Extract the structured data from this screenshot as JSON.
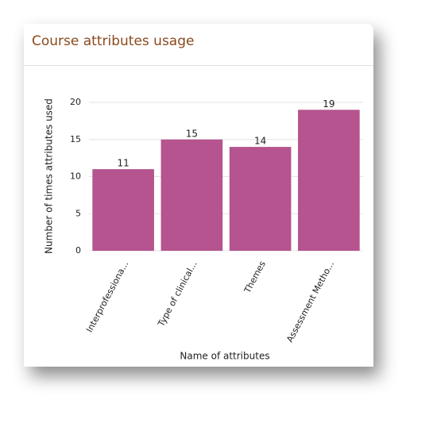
{
  "chart_data": {
    "type": "bar",
    "title": "Course attributes usage",
    "categories": [
      "Interprofessiona...",
      "Type of clinical...",
      "Themes",
      "Assessment Metho..."
    ],
    "values": [
      11,
      15,
      14,
      19
    ],
    "color": "#b5548e",
    "xlabel": "Name of attributes",
    "ylabel": "Number of times attributes used",
    "ylim": [
      0,
      20
    ],
    "yticks": [
      0,
      5,
      10,
      15,
      20
    ],
    "grid": true
  }
}
